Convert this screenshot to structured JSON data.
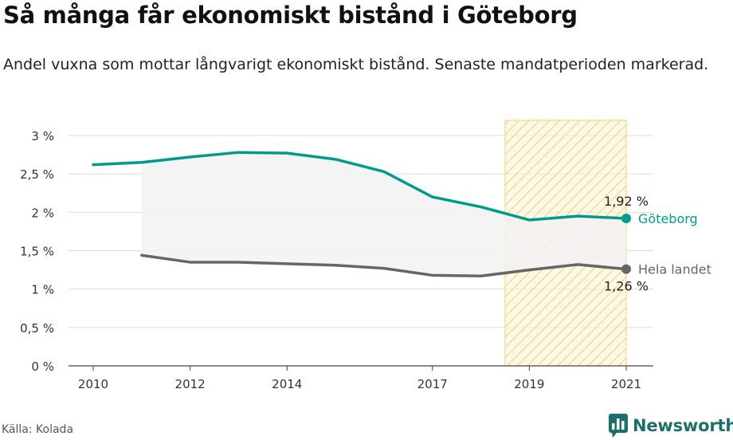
{
  "header": {
    "title": "Så många får ekonomiskt bistånd i Göteborg",
    "subtitle": "Andel vuxna som mottar långvarigt ekonomiskt bistånd. Senaste mandatperioden markerad."
  },
  "footer": {
    "source": "Källa: Kolada",
    "brand": "Newsworthy"
  },
  "colors": {
    "goteborg": "#009b8d",
    "hela_landet": "#666666",
    "highlight_fill": "#fdf3d6",
    "highlight_hatch": "#f5cf74",
    "gap_fill": "#f2f2f2",
    "brand": "#1e6e6e"
  },
  "chart_data": {
    "type": "line",
    "x_ticks": [
      2010,
      2012,
      2014,
      2017,
      2019,
      2021
    ],
    "y_ticks": [
      {
        "value": 0,
        "label": "0 %"
      },
      {
        "value": 0.5,
        "label": "0,5 %"
      },
      {
        "value": 1,
        "label": "1 %"
      },
      {
        "value": 1.5,
        "label": "1,5 %"
      },
      {
        "value": 2,
        "label": "2 %"
      },
      {
        "value": 2.5,
        "label": "2,5 %"
      },
      {
        "value": 3,
        "label": "3 %"
      }
    ],
    "xlim": [
      2010,
      2021
    ],
    "ylim": [
      0,
      3.1
    ],
    "grid": true,
    "highlight_range": [
      2018.5,
      2021
    ],
    "series": [
      {
        "name": "Göteborg",
        "color": "#009b8d",
        "end_label": "1,92 %",
        "x": [
          2010,
          2011,
          2012,
          2013,
          2014,
          2015,
          2016,
          2017,
          2018,
          2019,
          2020,
          2021
        ],
        "values": [
          2.62,
          2.65,
          2.72,
          2.78,
          2.77,
          2.69,
          2.53,
          2.2,
          2.07,
          1.9,
          1.95,
          1.92
        ]
      },
      {
        "name": "Hela landet",
        "color": "#666666",
        "end_label": "1,26 %",
        "x": [
          2011,
          2012,
          2013,
          2014,
          2015,
          2016,
          2017,
          2018,
          2019,
          2020,
          2021
        ],
        "values": [
          1.44,
          1.35,
          1.35,
          1.33,
          1.31,
          1.27,
          1.18,
          1.17,
          1.25,
          1.32,
          1.26
        ]
      }
    ]
  }
}
